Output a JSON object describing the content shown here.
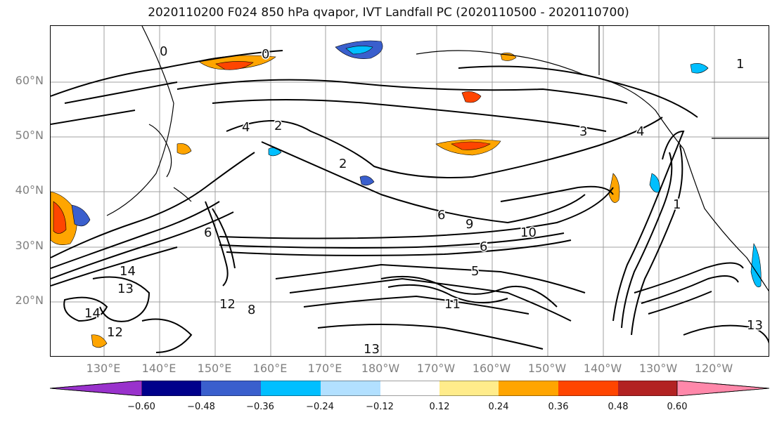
{
  "title": "2020110200 F024 850 hPa qvapor, IVT Landfall PC (2020110500 - 2020110700)",
  "map": {
    "lat_labels": [
      "60°N",
      "50°N",
      "40°N",
      "30°N",
      "20°N"
    ],
    "lon_labels": [
      "130°E",
      "140°E",
      "150°E",
      "160°E",
      "170°E",
      "180°W",
      "170°W",
      "160°W",
      "150°W",
      "140°W",
      "130°W",
      "120°W"
    ],
    "contour_labels": [
      "0",
      "0",
      "1",
      "2",
      "2",
      "3",
      "4",
      "4",
      "5",
      "6",
      "6",
      "6",
      "8",
      "9",
      "10",
      "11",
      "12",
      "12",
      "13",
      "13",
      "14",
      "14",
      "13",
      "1"
    ]
  },
  "colorbar": {
    "ticks": [
      "−0.60",
      "−0.48",
      "−0.36",
      "−0.24",
      "−0.12",
      "0.12",
      "0.24",
      "0.36",
      "0.48",
      "0.60"
    ],
    "colors": [
      "#9932cc",
      "#00008b",
      "#3a5fcd",
      "#00bfff",
      "#b2e0ff",
      "#ffffff",
      "#ffec8b",
      "#ffa500",
      "#ff4500",
      "#b22222",
      "#ff88aa"
    ]
  }
}
